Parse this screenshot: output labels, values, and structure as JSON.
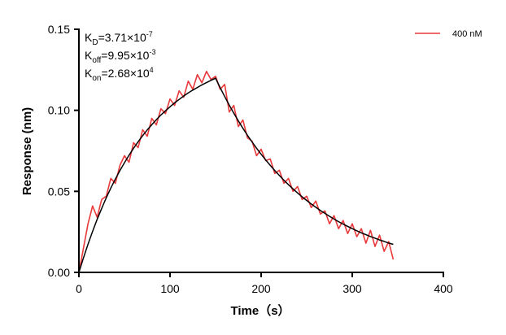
{
  "chart_data": {
    "type": "line",
    "title": "",
    "xlabel": "Time（s）",
    "ylabel": "Response (nm)",
    "xlim": [
      0,
      400
    ],
    "ylim": [
      0,
      0.15
    ],
    "x_ticks": [
      "0",
      "100",
      "200",
      "300",
      "400"
    ],
    "y_ticks": [
      "0.00",
      "0.05",
      "0.10",
      "0.15"
    ],
    "grid": false,
    "legend_position": "top-right",
    "annotations": {
      "kd": {
        "base": "K",
        "sub": "D",
        "text": "=3.71×10",
        "exp": "-7"
      },
      "koff": {
        "base": "K",
        "sub": "off",
        "text": "=9.95×10",
        "exp": "-3"
      },
      "kon": {
        "base": "K",
        "sub": "on",
        "text": "=2.68×10",
        "exp": "4"
      }
    },
    "x": [
      0,
      5,
      10,
      15,
      20,
      25,
      30,
      35,
      40,
      45,
      50,
      55,
      60,
      65,
      70,
      75,
      80,
      85,
      90,
      95,
      100,
      105,
      110,
      115,
      120,
      125,
      130,
      135,
      140,
      145,
      150,
      155,
      160,
      165,
      170,
      175,
      180,
      185,
      190,
      195,
      200,
      205,
      210,
      215,
      220,
      225,
      230,
      235,
      240,
      245,
      250,
      255,
      260,
      265,
      270,
      275,
      280,
      285,
      290,
      295,
      300,
      305,
      310,
      315,
      320,
      325,
      330,
      335,
      340,
      345
    ],
    "series": [
      {
        "name": "400 nM",
        "color": "#e8393b",
        "values": [
          0.0,
          0.015,
          0.03,
          0.041,
          0.034,
          0.045,
          0.047,
          0.058,
          0.055,
          0.066,
          0.072,
          0.068,
          0.08,
          0.077,
          0.088,
          0.084,
          0.095,
          0.091,
          0.101,
          0.098,
          0.107,
          0.103,
          0.112,
          0.108,
          0.118,
          0.113,
          0.122,
          0.117,
          0.124,
          0.119,
          0.121,
          0.113,
          0.116,
          0.099,
          0.103,
          0.09,
          0.094,
          0.083,
          0.081,
          0.072,
          0.076,
          0.069,
          0.07,
          0.061,
          0.063,
          0.055,
          0.058,
          0.05,
          0.053,
          0.045,
          0.047,
          0.04,
          0.044,
          0.036,
          0.038,
          0.03,
          0.035,
          0.027,
          0.032,
          0.024,
          0.03,
          0.022,
          0.027,
          0.018,
          0.026,
          0.016,
          0.023,
          0.013,
          0.019,
          0.008
        ]
      },
      {
        "color": "#000000",
        "values": [
          0.0,
          0.009,
          0.0174,
          0.0253,
          0.0327,
          0.0395,
          0.046,
          0.052,
          0.0576,
          0.0628,
          0.0677,
          0.0723,
          0.0766,
          0.0806,
          0.0844,
          0.0879,
          0.0911,
          0.0942,
          0.0971,
          0.0997,
          0.1022,
          0.1046,
          0.1067,
          0.1088,
          0.1107,
          0.1125,
          0.1141,
          0.1157,
          0.1171,
          0.1185,
          0.1198,
          0.114,
          0.1085,
          0.1032,
          0.0982,
          0.0935,
          0.0889,
          0.0846,
          0.0805,
          0.0766,
          0.0729,
          0.0694,
          0.066,
          0.0628,
          0.0598,
          0.0569,
          0.0541,
          0.0515,
          0.049,
          0.0466,
          0.0444,
          0.0422,
          0.0402,
          0.0382,
          0.0364,
          0.0346,
          0.0329,
          0.0313,
          0.0298,
          0.0284,
          0.027,
          0.0257,
          0.0244,
          0.0233,
          0.0221,
          0.0211,
          0.02,
          0.0191,
          0.0181,
          0.0173
        ]
      }
    ]
  }
}
